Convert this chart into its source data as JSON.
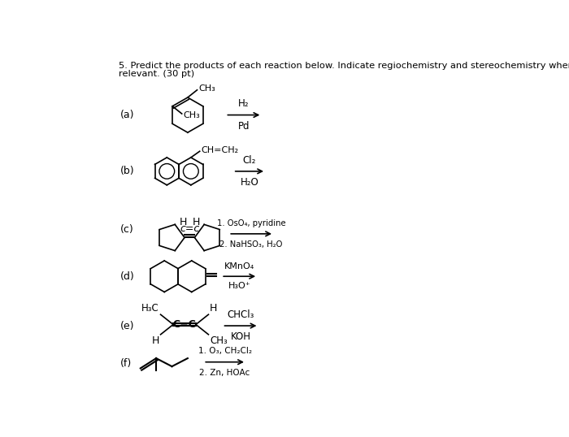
{
  "title_line1": "5. Predict the products of each reaction below. Indicate regiochemistry and stereochemistry when",
  "title_line2": "relevant. (30 pt)",
  "background_color": "#ffffff",
  "text_color": "#000000",
  "reactions": [
    {
      "label": "(a)",
      "r1": "H₂",
      "r2": "Pd"
    },
    {
      "label": "(b)",
      "r1": "Cl₂",
      "r2": "H₂O"
    },
    {
      "label": "(c)",
      "r1": "1. OsO₄, pyridine",
      "r2": "2. NaHSO₃, H₂O"
    },
    {
      "label": "(d)",
      "r1": "KMnO₄",
      "r2": "H₃O⁺"
    },
    {
      "label": "(e)",
      "r1": "CHCl₃",
      "r2": "KOH"
    },
    {
      "label": "(f)",
      "r1": "1. O₃, CH₂Cl₂",
      "r2": "2. Zn, HOAc"
    }
  ]
}
